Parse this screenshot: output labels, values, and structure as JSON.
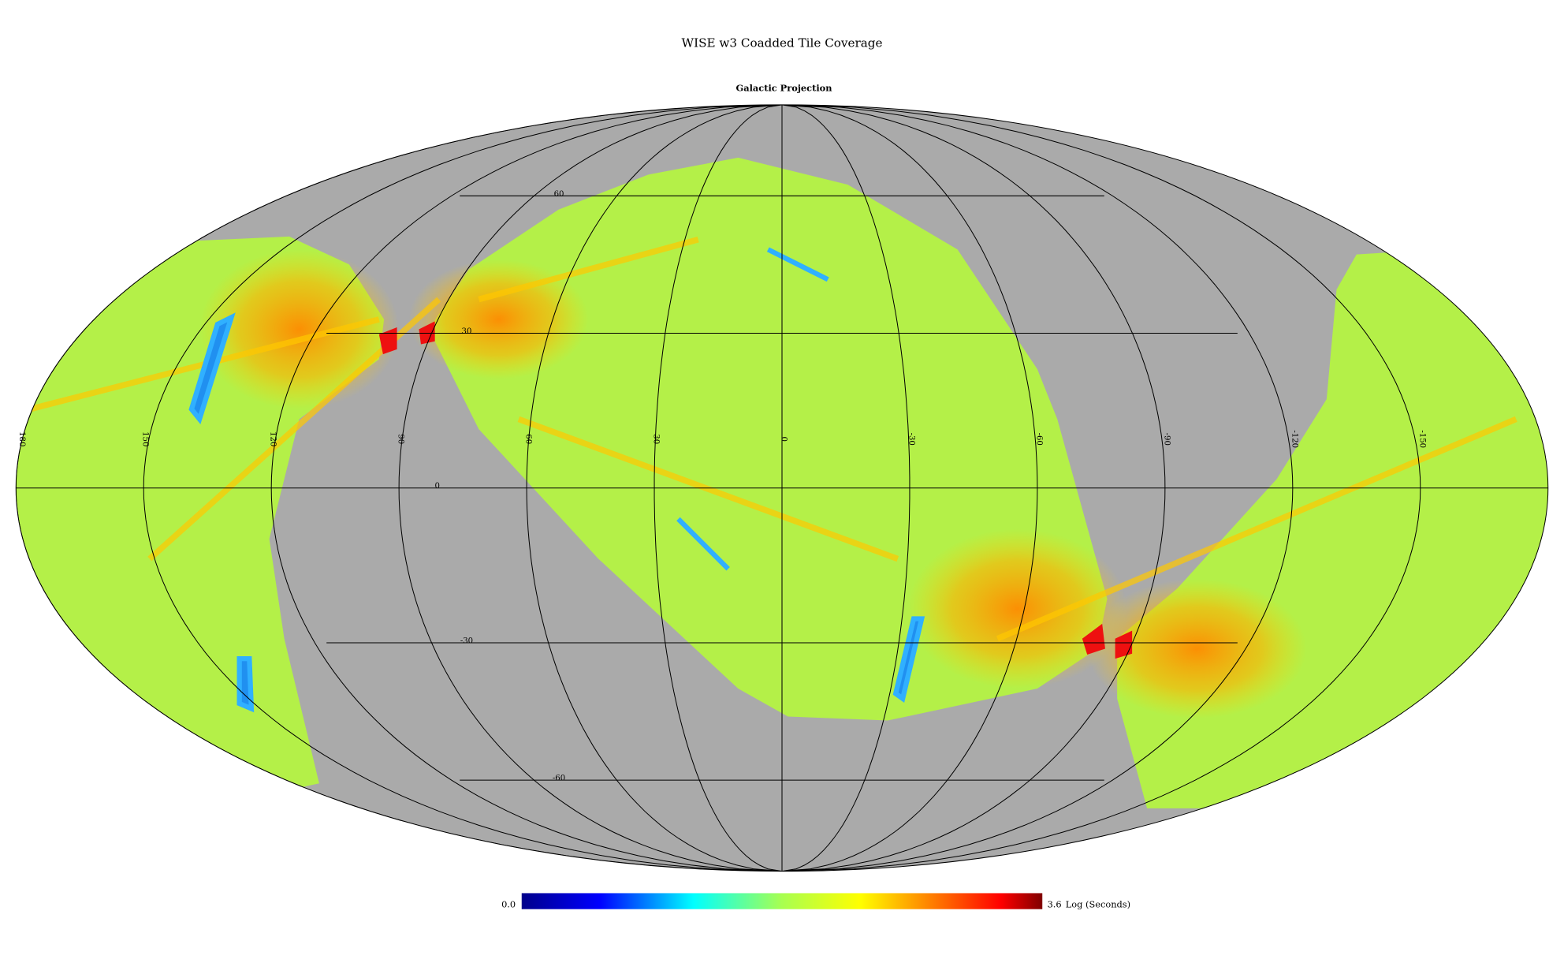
{
  "header": {
    "title": "WISE w3 Coadded Tile Coverage",
    "subtitle": "Galactic Projection"
  },
  "graticule": {
    "longitude_labels": [
      "180",
      "150",
      "120",
      "90",
      "60",
      "30",
      "0",
      "-30",
      "-60",
      "-90",
      "-120",
      "-150"
    ],
    "latitude_labels": [
      "60",
      "30",
      "0",
      "-30",
      "-60"
    ]
  },
  "colorbar": {
    "min_label": "0.0",
    "max_label": "3.6",
    "unit": "Log (Seconds)"
  }
}
